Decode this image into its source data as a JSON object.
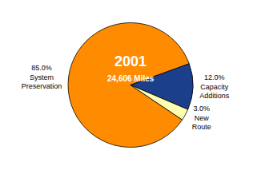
{
  "chart_data": {
    "type": "pie",
    "categories": [
      "System Preservation",
      "Capacity Additions",
      "New Route"
    ],
    "values": [
      85.0,
      12.0,
      3.0
    ],
    "value_labels": [
      "85.0%",
      "12.0%",
      "3.0%"
    ],
    "colors": [
      "#FF8C00",
      "#1B3F8B",
      "#FFFFB0"
    ],
    "data_labels": true,
    "annotations": [
      {
        "text": "2001",
        "color": "#FFFFFF"
      },
      {
        "text": "24,606 Miles",
        "color": "#FFFFFF"
      }
    ]
  }
}
